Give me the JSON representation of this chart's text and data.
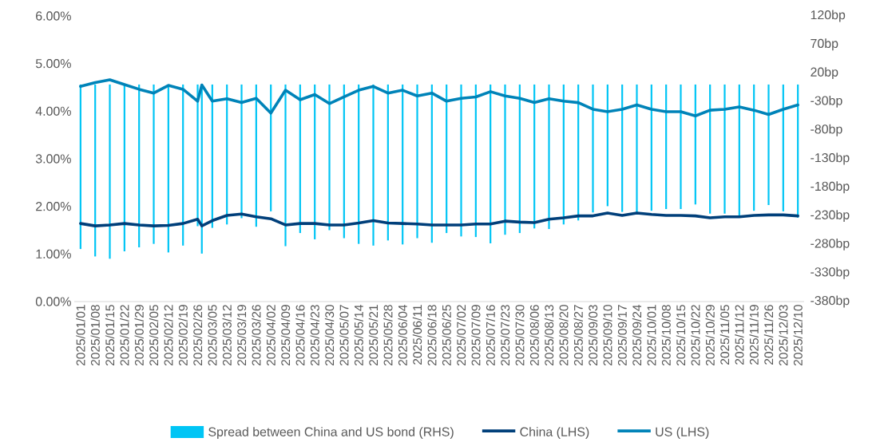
{
  "chart_data": {
    "type": "line",
    "x": [
      "2025-01-01",
      "2025-01-08",
      "2025-01-15",
      "2025-01-22",
      "2025-01-29",
      "2025-02-05",
      "2025-02-12",
      "2025-02-19",
      "2025-02-26",
      "2025-02-28",
      "2025-03-05",
      "2025-03-12",
      "2025-03-19",
      "2025-03-26",
      "2025-04-02",
      "2025-04-09",
      "2025-04-16",
      "2025-04-23",
      "2025-04-30",
      "2025-05-07",
      "2025-05-14",
      "2025-05-21",
      "2025-05-28",
      "2025-06-04",
      "2025-06-11",
      "2025-06-18",
      "2025-06-25",
      "2025-07-02",
      "2025-07-09",
      "2025-07-16",
      "2025-07-23",
      "2025-07-30",
      "2025-08-06",
      "2025-08-13",
      "2025-08-20",
      "2025-08-27",
      "2025-09-03",
      "2025-09-10",
      "2025-09-17",
      "2025-09-24",
      "2025-10-01",
      "2025-10-08",
      "2025-10-15",
      "2025-10-22",
      "2025-10-29",
      "2025-11-05",
      "2025-11-12",
      "2025-11-19",
      "2025-11-26",
      "2025-12-03",
      "2025-12-10"
    ],
    "series": [
      {
        "name": "Spread between China and US bond (RHS)",
        "type": "bar",
        "axis": "y2",
        "color": "#00c5f5",
        "values": [
          -288,
          -301,
          -305,
          -292,
          -285,
          -279,
          -294,
          -282,
          -248,
          -296,
          -251,
          -245,
          -234,
          -249,
          -222,
          -283,
          -260,
          -271,
          -255,
          -269,
          -279,
          -282,
          -273,
          -280,
          -269,
          -277,
          -260,
          -266,
          -267,
          -278,
          -263,
          -260,
          -252,
          -253,
          -245,
          -238,
          -224,
          -213,
          -223,
          -227,
          -221,
          -218,
          -218,
          -210,
          -226,
          -226,
          -231,
          -221,
          -211,
          -222,
          -233
        ]
      },
      {
        "name": "China (LHS)",
        "color": "#003f7a",
        "values": [
          1.64,
          1.59,
          1.61,
          1.64,
          1.61,
          1.59,
          1.6,
          1.64,
          1.73,
          1.59,
          1.7,
          1.81,
          1.84,
          1.78,
          1.74,
          1.61,
          1.64,
          1.64,
          1.61,
          1.61,
          1.65,
          1.7,
          1.65,
          1.64,
          1.63,
          1.61,
          1.61,
          1.61,
          1.63,
          1.63,
          1.69,
          1.67,
          1.66,
          1.73,
          1.76,
          1.8,
          1.8,
          1.86,
          1.81,
          1.86,
          1.83,
          1.81,
          1.81,
          1.8,
          1.76,
          1.78,
          1.78,
          1.81,
          1.82,
          1.82,
          1.8
        ]
      },
      {
        "name": "US (LHS)",
        "color": "#0083b8",
        "values": [
          4.52,
          4.6,
          4.66,
          4.56,
          4.46,
          4.38,
          4.54,
          4.46,
          4.21,
          4.55,
          4.21,
          4.26,
          4.18,
          4.27,
          3.96,
          4.44,
          4.24,
          4.35,
          4.16,
          4.3,
          4.44,
          4.52,
          4.38,
          4.44,
          4.32,
          4.38,
          4.21,
          4.27,
          4.3,
          4.41,
          4.32,
          4.27,
          4.18,
          4.26,
          4.21,
          4.18,
          4.04,
          3.99,
          4.04,
          4.13,
          4.04,
          3.99,
          3.99,
          3.9,
          4.02,
          4.04,
          4.09,
          4.02,
          3.93,
          4.04,
          4.13
        ]
      }
    ],
    "xlim": [
      "2024-12-29",
      "2025-12-13"
    ],
    "xticks": [
      {
        "value": "2025-01-01",
        "label": "2025/01/01"
      },
      {
        "value": "2025-01-08",
        "label": "2025/01/08"
      },
      {
        "value": "2025-01-15",
        "label": "2025/01/15"
      },
      {
        "value": "2025-01-22",
        "label": "2025/01/22"
      },
      {
        "value": "2025-01-29",
        "label": "2025/01/29"
      },
      {
        "value": "2025-02-05",
        "label": "2025/02/05"
      },
      {
        "value": "2025-02-12",
        "label": "2025/02/12"
      },
      {
        "value": "2025-02-19",
        "label": "2025/02/19"
      },
      {
        "value": "2025-02-26",
        "label": "2025/02/26"
      },
      {
        "value": "2025-03-05",
        "label": "2025/03/05"
      },
      {
        "value": "2025-03-12",
        "label": "2025/03/12"
      },
      {
        "value": "2025-03-19",
        "label": "2025/03/19"
      },
      {
        "value": "2025-03-26",
        "label": "2025/03/26"
      },
      {
        "value": "2025-04-02",
        "label": "2025/04/02"
      },
      {
        "value": "2025-04-09",
        "label": "2025/04/09"
      },
      {
        "value": "2025-04-16",
        "label": "2025/04/16"
      },
      {
        "value": "2025-04-23",
        "label": "2025/04/23"
      },
      {
        "value": "2025-04-30",
        "label": "2025/04/30"
      },
      {
        "value": "2025-05-07",
        "label": "2025/05/07"
      },
      {
        "value": "2025-05-14",
        "label": "2025/05/14"
      },
      {
        "value": "2025-05-21",
        "label": "2025/05/21"
      },
      {
        "value": "2025-05-28",
        "label": "2025/05/28"
      },
      {
        "value": "2025-06-04",
        "label": "2025/06/04"
      },
      {
        "value": "2025-06-11",
        "label": "2025/06/11"
      },
      {
        "value": "2025-06-18",
        "label": "2025/06/18"
      },
      {
        "value": "2025-06-25",
        "label": "2025/06/25"
      },
      {
        "value": "2025-07-02",
        "label": "2025/07/02"
      },
      {
        "value": "2025-07-09",
        "label": "2025/07/09"
      },
      {
        "value": "2025-07-16",
        "label": "2025/07/16"
      },
      {
        "value": "2025-07-23",
        "label": "2025/07/23"
      },
      {
        "value": "2025-07-30",
        "label": "2025/07/30"
      },
      {
        "value": "2025-08-06",
        "label": "2025/08/06"
      },
      {
        "value": "2025-08-13",
        "label": "2025/08/13"
      },
      {
        "value": "2025-08-20",
        "label": "2025/08/20"
      },
      {
        "value": "2025-08-27",
        "label": "2025/08/27"
      },
      {
        "value": "2025-09-03",
        "label": "2025/09/03"
      },
      {
        "value": "2025-09-10",
        "label": "2025/09/10"
      },
      {
        "value": "2025-09-17",
        "label": "2025/09/17"
      },
      {
        "value": "2025-09-24",
        "label": "2025/09/24"
      },
      {
        "value": "2025-10-01",
        "label": "2025/10/01"
      },
      {
        "value": "2025-10-08",
        "label": "2025/10/08"
      },
      {
        "value": "2025-10-15",
        "label": "2025/10/15"
      },
      {
        "value": "2025-10-22",
        "label": "2025/10/22"
      },
      {
        "value": "2025-10-29",
        "label": "2025/10/29"
      },
      {
        "value": "2025-11-05",
        "label": "2025/11/05"
      },
      {
        "value": "2025-11-12",
        "label": "2025/11/12"
      },
      {
        "value": "2025-11-19",
        "label": "2025/11/19"
      },
      {
        "value": "2025-11-26",
        "label": "2025/11/26"
      },
      {
        "value": "2025-12-03",
        "label": "2025/12/03"
      },
      {
        "value": "2025-12-10",
        "label": "2025/12/10"
      }
    ],
    "ylim": [
      0,
      6
    ],
    "yticks": [
      {
        "value": 0,
        "label": "0.00%"
      },
      {
        "value": 1,
        "label": "1.00%"
      },
      {
        "value": 2,
        "label": "2.00%"
      },
      {
        "value": 3,
        "label": "3.00%"
      },
      {
        "value": 4,
        "label": "4.00%"
      },
      {
        "value": 5,
        "label": "5.00%"
      },
      {
        "value": 6,
        "label": "6.00%"
      }
    ],
    "y2lim": [
      -380,
      120
    ],
    "y2ticks": [
      {
        "value": -380,
        "label": "-380bp"
      },
      {
        "value": -330,
        "label": "-330bp"
      },
      {
        "value": -280,
        "label": "-280bp"
      },
      {
        "value": -230,
        "label": "-230bp"
      },
      {
        "value": -180,
        "label": "-180bp"
      },
      {
        "value": -130,
        "label": "-130bp"
      },
      {
        "value": -80,
        "label": "-80bp"
      },
      {
        "value": -30,
        "label": "-30bp"
      },
      {
        "value": 20,
        "label": "20bp"
      },
      {
        "value": 70,
        "label": "70bp"
      },
      {
        "value": 120,
        "label": "120bp"
      }
    ],
    "legend": "bottom"
  }
}
